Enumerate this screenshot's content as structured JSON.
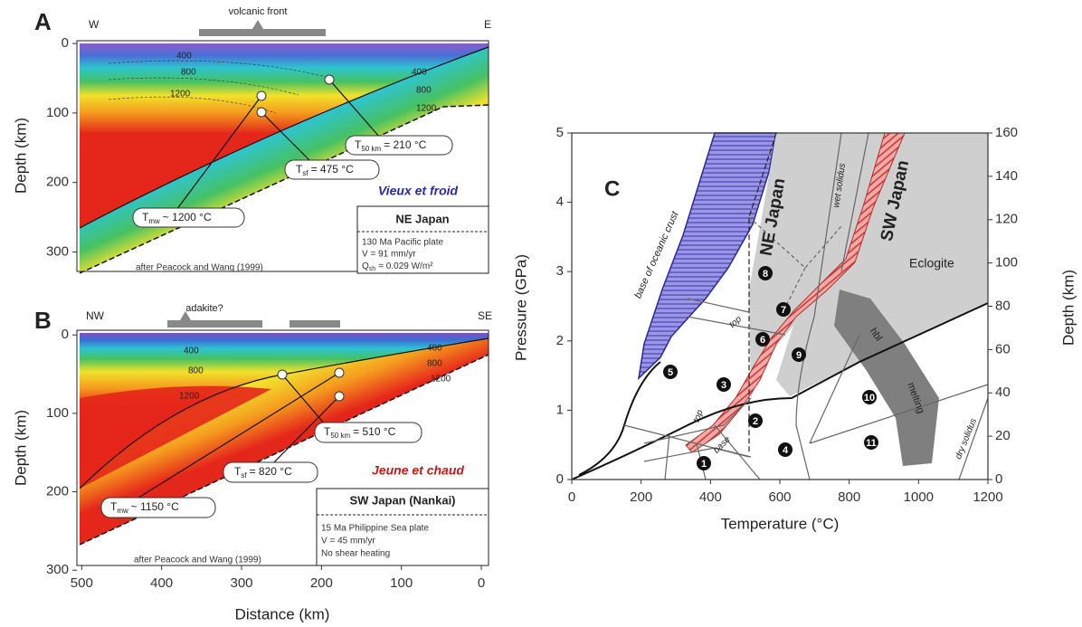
{
  "chart_data": [
    {
      "type": "thermal-model",
      "panel_label": "A",
      "ylabel": "Depth (km)",
      "xlim": [
        506,
        -9
      ],
      "ylim": [
        -4,
        328
      ],
      "yticks": [
        0,
        100,
        200,
        300
      ],
      "edge_labels": [
        "W",
        "E"
      ],
      "surface_label": "volcanic front",
      "isotherm_labels": [
        400,
        800,
        1200
      ],
      "callouts": [
        {
          "symbol": "T",
          "subscript": "50 km",
          "text": "= 210 °C"
        },
        {
          "symbol": "T",
          "subscript": "sf",
          "text": "= 475 °C"
        },
        {
          "symbol": "T",
          "subscript": "mw",
          "text": "~ 1200 °C"
        }
      ],
      "caption": "Vieux et froid",
      "setting": {
        "title": "NE Japan",
        "lines": [
          "130 Ma Pacific plate",
          "V = 91 mm/yr"
        ],
        "heat": {
          "symbol": "Q",
          "subscript": "sh",
          "text": "= 0.029 W/m²"
        }
      },
      "source": "after Peacock and Wang (1999)"
    },
    {
      "type": "thermal-model",
      "panel_label": "B",
      "ylabel": "Depth (km)",
      "xlabel": "Distance (km)",
      "xlim": [
        506,
        -9
      ],
      "xticks": [
        500,
        400,
        300,
        200,
        100,
        0
      ],
      "ylim": [
        -6,
        294
      ],
      "yticks": [
        0,
        100,
        200,
        300
      ],
      "edge_labels": [
        "NW",
        "SE"
      ],
      "surface_label": "adakite?",
      "isotherm_labels": [
        400,
        800,
        1200
      ],
      "callouts": [
        {
          "symbol": "T",
          "subscript": "50 km",
          "text": "= 510 °C"
        },
        {
          "symbol": "T",
          "subscript": "sf",
          "text": "= 820 °C"
        },
        {
          "symbol": "T",
          "subscript": "mw",
          "text": "~ 1150 °C"
        }
      ],
      "caption": "Jeune et chaud",
      "setting": {
        "title": "SW Japan (Nankai)",
        "lines": [
          "15 Ma Philippine Sea plate",
          "V = 45 mm/yr",
          "No shear heating"
        ]
      },
      "source": "after Peacock and Wang (1999)"
    },
    {
      "type": "phase-diagram",
      "panel_label": "C",
      "xlabel": "Temperature (°C)",
      "ylabel": "Pressure (GPa)",
      "y2label": "Depth (km)",
      "xlim": [
        0,
        1200
      ],
      "xticks": [
        0,
        200,
        400,
        600,
        800,
        1000,
        1200
      ],
      "ylim": [
        0,
        5
      ],
      "yticks": [
        0,
        1,
        2,
        3,
        4,
        5
      ],
      "y2lim": [
        0,
        160
      ],
      "y2ticks": [
        0,
        20,
        40,
        60,
        80,
        100,
        120,
        140,
        160
      ],
      "regions": [
        "NE Japan",
        "SW Japan",
        "Eclogite"
      ],
      "curve_labels": [
        "base of oceanic crust",
        "wet solidus",
        "top",
        "top",
        "base",
        "hbl",
        "melting",
        "dry solidus"
      ],
      "markers": [
        1,
        2,
        3,
        4,
        5,
        6,
        7,
        8,
        9,
        10,
        11
      ]
    }
  ]
}
